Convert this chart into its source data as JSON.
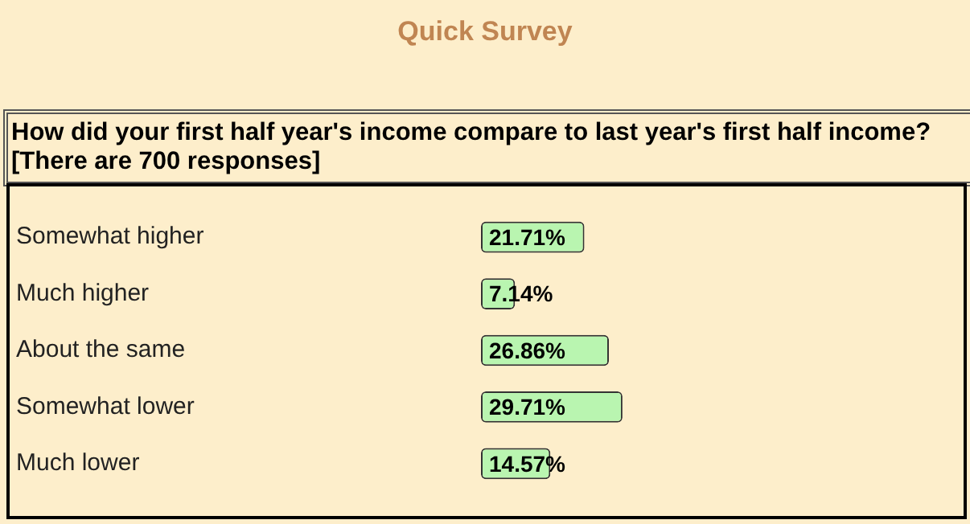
{
  "chart_data": {
    "type": "bar",
    "orientation": "horizontal",
    "title": "Quick Survey",
    "subtitle": "How did your first half year's income compare to last year's first half income?",
    "annotations": [
      "[There are 700 responses]"
    ],
    "categories": [
      "Somewhat higher",
      "Much higher",
      "About the same",
      "Somewhat lower",
      "Much lower"
    ],
    "values": [
      21.71,
      7.14,
      26.86,
      29.71,
      14.57
    ],
    "value_labels": [
      "21.71%",
      "7.14%",
      "26.86%",
      "29.71%",
      "14.57%"
    ],
    "color": "#b9f5b0",
    "legend": false,
    "tick_labels": "y"
  }
}
